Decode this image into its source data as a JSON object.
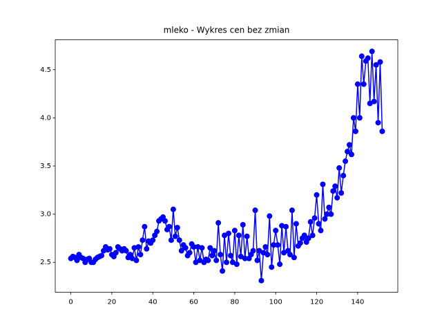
{
  "chart_data": {
    "type": "line",
    "title": "mleko - Wykres cen bez zmian",
    "x": [
      0,
      1,
      2,
      3,
      4,
      5,
      6,
      7,
      8,
      9,
      10,
      11,
      12,
      13,
      14,
      15,
      16,
      17,
      18,
      19,
      20,
      21,
      22,
      23,
      24,
      25,
      26,
      27,
      28,
      29,
      30,
      31,
      32,
      33,
      34,
      35,
      36,
      37,
      38,
      39,
      40,
      41,
      42,
      43,
      44,
      45,
      46,
      47,
      48,
      49,
      50,
      51,
      52,
      53,
      54,
      55,
      56,
      57,
      58,
      59,
      60,
      61,
      62,
      63,
      64,
      65,
      66,
      67,
      68,
      69,
      70,
      71,
      72,
      73,
      74,
      75,
      76,
      77,
      78,
      79,
      80,
      81,
      82,
      83,
      84,
      85,
      86,
      87,
      88,
      89,
      90,
      91,
      92,
      93,
      94,
      95,
      96,
      97,
      98,
      99,
      100,
      101,
      102,
      103,
      104,
      105,
      106,
      107,
      108,
      109,
      110,
      111,
      112,
      113,
      114,
      115,
      116,
      117,
      118,
      119,
      120,
      121,
      122,
      123,
      124,
      125,
      126,
      127,
      128,
      129,
      130,
      131,
      132,
      133,
      134,
      135,
      136,
      137,
      138,
      139,
      140,
      141,
      142,
      143,
      144,
      145,
      146,
      147,
      148,
      149,
      150,
      151,
      152
    ],
    "series": [
      {
        "color": "#0000ff",
        "values": [
          2.54,
          2.56,
          2.55,
          2.52,
          2.58,
          2.55,
          2.54,
          2.5,
          2.53,
          2.54,
          2.5,
          2.5,
          2.53,
          2.55,
          2.56,
          2.57,
          2.62,
          2.66,
          2.63,
          2.64,
          2.58,
          2.56,
          2.6,
          2.66,
          2.64,
          2.62,
          2.64,
          2.62,
          2.55,
          2.58,
          2.54,
          2.65,
          2.52,
          2.66,
          2.58,
          2.73,
          2.87,
          2.64,
          2.72,
          2.7,
          2.73,
          2.78,
          2.82,
          2.93,
          2.95,
          2.97,
          2.93,
          2.84,
          2.87,
          2.73,
          3.05,
          2.77,
          2.86,
          2.73,
          2.62,
          2.68,
          2.65,
          2.57,
          2.6,
          2.69,
          2.66,
          2.5,
          2.66,
          2.52,
          2.65,
          2.5,
          2.53,
          2.52,
          2.65,
          2.57,
          2.62,
          2.52,
          2.91,
          2.58,
          2.41,
          2.78,
          2.5,
          2.8,
          2.57,
          2.5,
          2.83,
          2.48,
          2.78,
          2.56,
          2.89,
          2.54,
          2.77,
          2.54,
          2.58,
          2.62,
          3.04,
          2.52,
          2.62,
          2.31,
          2.6,
          2.66,
          2.58,
          2.98,
          2.45,
          2.68,
          2.83,
          2.68,
          2.48,
          2.88,
          2.6,
          2.87,
          2.62,
          2.58,
          3.04,
          2.55,
          2.9,
          2.67,
          2.7,
          2.75,
          2.78,
          2.71,
          2.75,
          2.92,
          2.78,
          2.96,
          3.2,
          2.9,
          2.83,
          3.31,
          2.95,
          3.0,
          3.07,
          3.0,
          3.24,
          3.29,
          3.17,
          3.48,
          3.22,
          3.4,
          3.55,
          3.65,
          3.72,
          3.62,
          4.0,
          3.86,
          4.35,
          4.0,
          4.64,
          4.35,
          4.59,
          4.62,
          4.15,
          4.69,
          4.17,
          4.55,
          3.95,
          4.58,
          3.86
        ]
      }
    ],
    "xlim": [
      -7.6,
      159.6
    ],
    "ylim": [
      2.19,
      4.81
    ],
    "xticks": [
      0,
      20,
      40,
      60,
      80,
      100,
      120,
      140
    ],
    "yticks": [
      2.5,
      {
        "value": 3.0,
        "label": "3.0"
      },
      3.5,
      {
        "value": 4.0,
        "label": "4.0"
      },
      4.5
    ]
  }
}
